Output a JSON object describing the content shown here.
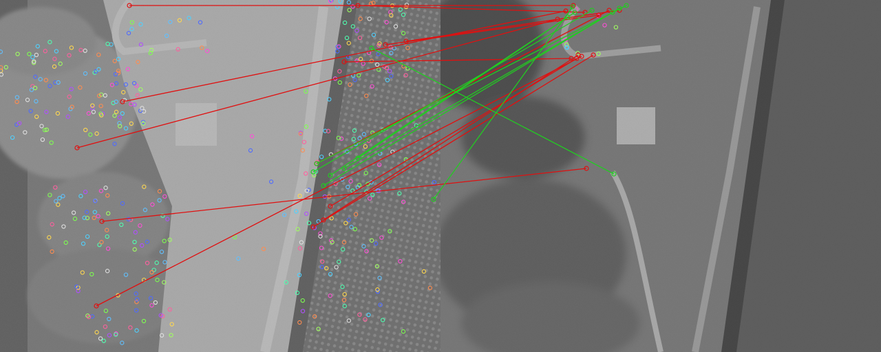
{
  "images": {
    "left": {
      "name": "visible-aerial-image"
    },
    "right": {
      "name": "thermal-aerial-image"
    }
  },
  "colors": {
    "inlier": "#22cc22",
    "outlier": "#e01010"
  },
  "matches": {
    "inlier_count": 8,
    "outlier_count": 13
  }
}
